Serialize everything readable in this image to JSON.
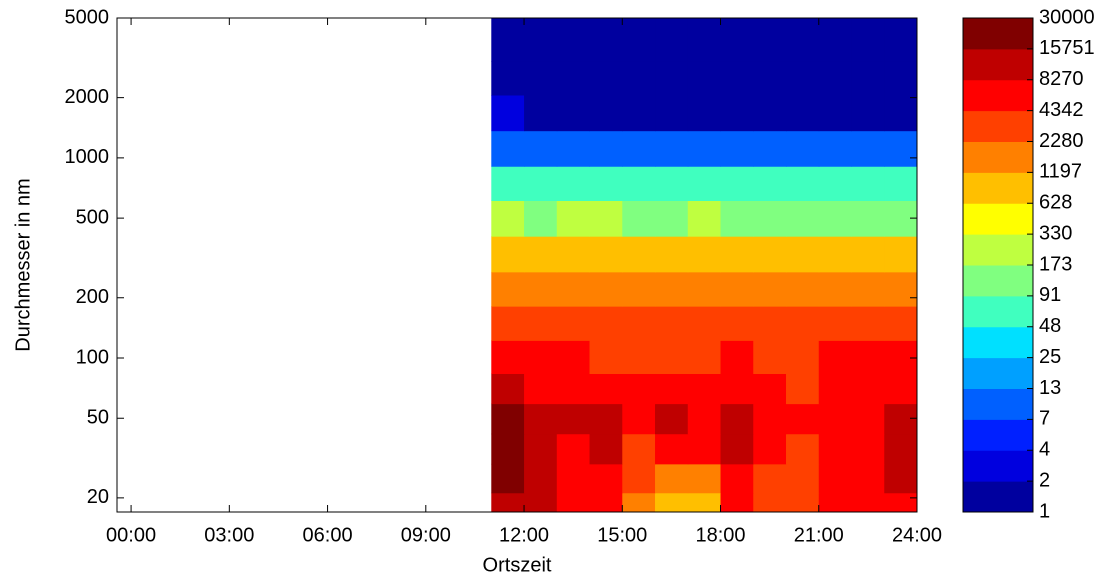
{
  "chart_data": {
    "type": "heatmap",
    "x_label": "Ortszeit",
    "y_label": "Durchmesser in nm",
    "x": [
      11.5,
      12.5,
      13.5,
      14.5,
      15.5,
      16.5,
      17.5,
      18.5,
      19.5,
      20.5,
      21.5,
      22.5,
      23.5
    ],
    "y": [
      18,
      25,
      35,
      50,
      70,
      100,
      150,
      220,
      330,
      500,
      750,
      1100,
      1700,
      2500,
      3700
    ],
    "z": [
      [
        12000,
        9000,
        6000,
        5000,
        2000,
        700,
        900,
        5000,
        3000,
        3000,
        6000,
        7000,
        8000
      ],
      [
        16000,
        10000,
        7000,
        6000,
        3000,
        1500,
        2000,
        7000,
        4000,
        3500,
        7000,
        8000,
        9000
      ],
      [
        17000,
        11000,
        8000,
        10000,
        4000,
        8000,
        5000,
        9000,
        5000,
        4000,
        7000,
        8000,
        9000
      ],
      [
        18000,
        10000,
        9000,
        11000,
        4500,
        10000,
        6000,
        10000,
        5000,
        4500,
        7000,
        8000,
        10000
      ],
      [
        12000,
        8000,
        7000,
        7000,
        4500,
        6000,
        5000,
        7000,
        4500,
        4000,
        6000,
        6000,
        7000
      ],
      [
        5000,
        4500,
        4500,
        4000,
        3000,
        3500,
        4000,
        4500,
        4000,
        3500,
        4500,
        4500,
        4500
      ],
      [
        3000,
        2500,
        2500,
        2400,
        2300,
        2400,
        2500,
        3000,
        2500,
        2500,
        2400,
        2300,
        2300
      ],
      [
        1500,
        1400,
        1600,
        1500,
        1300,
        1800,
        1800,
        1700,
        1500,
        1400,
        1300,
        1300,
        1300
      ],
      [
        700,
        700,
        800,
        800,
        700,
        900,
        900,
        900,
        800,
        750,
        700,
        700,
        700
      ],
      [
        200,
        150,
        180,
        200,
        150,
        170,
        180,
        170,
        170,
        170,
        160,
        160,
        150
      ],
      [
        60,
        50,
        55,
        55,
        50,
        55,
        55,
        55,
        55,
        50,
        50,
        50,
        50
      ],
      [
        12,
        10,
        10,
        10,
        10,
        10,
        10,
        10,
        10,
        10,
        9,
        9,
        9
      ],
      [
        3,
        2,
        2,
        2,
        2,
        2,
        2,
        2,
        2,
        2,
        2,
        2,
        2
      ],
      [
        1.5,
        1.5,
        1.5,
        1.5,
        1.5,
        1.5,
        1.5,
        1.5,
        1.5,
        1.5,
        1.5,
        1.5,
        1.5
      ],
      [
        1.5,
        1.5,
        1.5,
        1.5,
        1.5,
        1.5,
        1.5,
        1.5,
        1.5,
        1.5,
        1.5,
        1.5,
        1.5
      ]
    ],
    "xlim": [
      -0.43,
      24
    ],
    "xticks": [
      {
        "value": 0,
        "label": "00:00"
      },
      {
        "value": 3,
        "label": "03:00"
      },
      {
        "value": 6,
        "label": "06:00"
      },
      {
        "value": 9,
        "label": "09:00"
      },
      {
        "value": 12,
        "label": "12:00"
      },
      {
        "value": 15,
        "label": "15:00"
      },
      {
        "value": 18,
        "label": "18:00"
      },
      {
        "value": 21,
        "label": "21:00"
      },
      {
        "value": 24,
        "label": "24:00"
      }
    ],
    "ylim": [
      17,
      5000
    ],
    "y_log": true,
    "yticks": [
      20,
      50,
      100,
      200,
      500,
      1000,
      2000,
      5000
    ],
    "colorbar": {
      "levels": [
        1,
        2,
        4,
        7,
        13,
        25,
        48,
        91,
        173,
        330,
        628,
        1197,
        2280,
        4342,
        8270,
        15751,
        30000
      ],
      "colors": [
        "#00009f",
        "#0000df",
        "#0020ff",
        "#0060ff",
        "#00a0ff",
        "#00e0ff",
        "#40ffbf",
        "#80ff80",
        "#bfff40",
        "#ffff00",
        "#ffbf00",
        "#ff8000",
        "#ff4000",
        "#ff0000",
        "#bf0000",
        "#800000"
      ]
    }
  }
}
